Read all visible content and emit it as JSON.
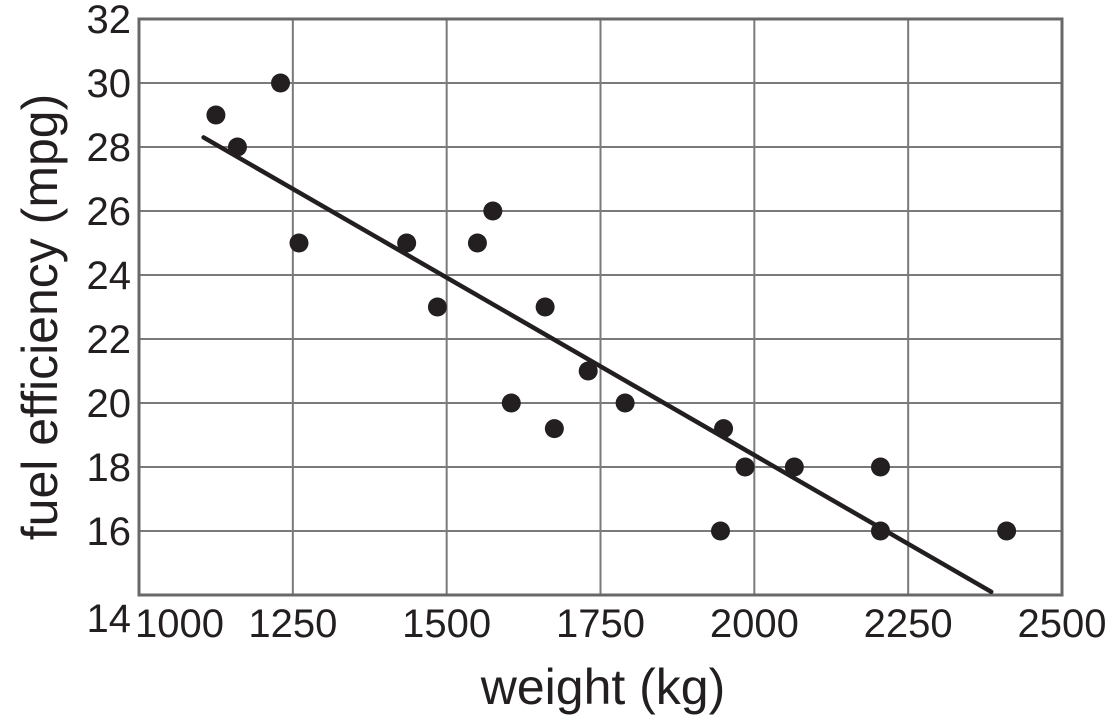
{
  "page": {
    "background": "#ffffff"
  },
  "chart_data": {
    "type": "scatter",
    "title": "",
    "xlabel": "weight (kg)",
    "ylabel": "fuel efficiency (mpg)",
    "xlim": [
      1000,
      2500
    ],
    "ylim": [
      14,
      32
    ],
    "xticks": [
      1000,
      1250,
      1500,
      1750,
      2000,
      2250,
      2500
    ],
    "yticks": [
      32,
      30,
      28,
      26,
      24,
      22,
      20,
      18,
      16,
      14
    ],
    "grid": true,
    "legend": "none",
    "points": [
      {
        "x": 1125,
        "y": 29
      },
      {
        "x": 1160,
        "y": 28
      },
      {
        "x": 1230,
        "y": 30
      },
      {
        "x": 1260,
        "y": 25
      },
      {
        "x": 1435,
        "y": 25
      },
      {
        "x": 1485,
        "y": 23
      },
      {
        "x": 1550,
        "y": 25
      },
      {
        "x": 1575,
        "y": 26
      },
      {
        "x": 1605,
        "y": 20
      },
      {
        "x": 1660,
        "y": 23
      },
      {
        "x": 1675,
        "y": 19.2
      },
      {
        "x": 1730,
        "y": 21
      },
      {
        "x": 1790,
        "y": 20
      },
      {
        "x": 1945,
        "y": 16
      },
      {
        "x": 1950,
        "y": 19.2
      },
      {
        "x": 1985,
        "y": 18
      },
      {
        "x": 2065,
        "y": 18
      },
      {
        "x": 2205,
        "y": 18
      },
      {
        "x": 2205,
        "y": 16
      },
      {
        "x": 2410,
        "y": 16
      }
    ],
    "trend_line": {
      "x1": 1105,
      "y1": 28.3,
      "x2": 2385,
      "y2": 14.1
    },
    "colors": {
      "point": "#231f20",
      "trend": "#231f20",
      "grid": "#7a7a7a",
      "border": "#686868",
      "text": "#231f20",
      "background": "#ffffff"
    }
  }
}
